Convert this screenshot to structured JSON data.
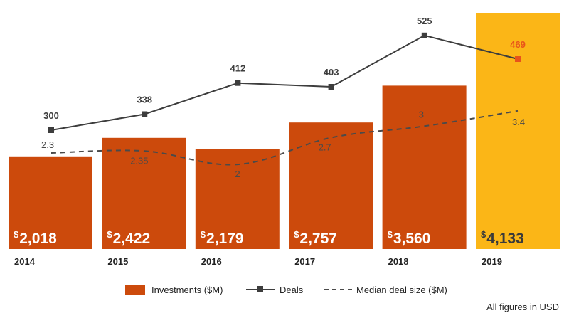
{
  "colors": {
    "bar": "#cc4a0c",
    "bar_highlight": "#fbb617",
    "deals_line": "#3d3d3d",
    "deals_highlight": "#e8531b",
    "median_line": "#4a4a4a",
    "bar_text": "#ffffff",
    "highlight_bar_text": "#3a3a3a"
  },
  "chart_data": {
    "type": "bar",
    "categories": [
      "2014",
      "2015",
      "2016",
      "2017",
      "2018",
      "2019"
    ],
    "highlight_index": 5,
    "series": [
      {
        "name": "Investments ($M)",
        "type": "bar",
        "values": [
          2018,
          2422,
          2179,
          2757,
          3560,
          4133
        ],
        "labels": [
          {
            "prefix": "$",
            "value": "2,018"
          },
          {
            "prefix": "$",
            "value": "2,422"
          },
          {
            "prefix": "$",
            "value": "2,179"
          },
          {
            "prefix": "$",
            "value": "2,757"
          },
          {
            "prefix": "$",
            "value": "3,560"
          },
          {
            "prefix": "$",
            "value": "4,133"
          }
        ]
      },
      {
        "name": "Deals",
        "type": "line",
        "marker": "square",
        "values": [
          300,
          338,
          412,
          403,
          525,
          469
        ],
        "labels": [
          "300",
          "338",
          "412",
          "403",
          "525",
          "469"
        ]
      },
      {
        "name": "Median deal size ($M)",
        "type": "line",
        "style": "dashed",
        "values": [
          2.3,
          2.35,
          2,
          2.7,
          3,
          3.4
        ],
        "labels": [
          "2.3",
          "2.35",
          "2",
          "2.7",
          "3",
          "3.4"
        ]
      }
    ],
    "legend": {
      "placement": "bottom-center"
    },
    "grid": false,
    "footnote": "All figures in USD"
  }
}
